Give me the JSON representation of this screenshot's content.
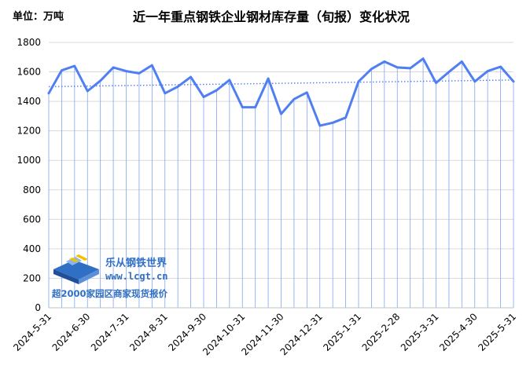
{
  "unit_label": "单位：万吨",
  "watermark": {
    "name": "乐从钢铁世界",
    "url": "www.lcgt.cn",
    "slogan": "超2000家园区商家现货报价"
  },
  "colors": {
    "series": "#4f7ff2",
    "trend": "#4f7ff2",
    "drop_lines": "#7fa4f7",
    "grid": "#d9d9d9",
    "logo_blue": "#2f6fc4",
    "logo_yellow": "#f2c200"
  },
  "chart_data": {
    "type": "line",
    "title": "近一年重点钢铁企业钢材库存量（旬报）变化状况",
    "xlabel": "",
    "ylabel": "",
    "ylim": [
      0,
      1800
    ],
    "yticks": [
      0,
      200,
      400,
      600,
      800,
      1000,
      1200,
      1400,
      1600,
      1800
    ],
    "grid": "horizontal",
    "x_tick_labels": [
      "2024-5-31",
      "2024-6-30",
      "2024-7-31",
      "2024-8-31",
      "2024-9-30",
      "2024-10-31",
      "2024-11-30",
      "2024-12-31",
      "2025-1-31",
      "2025-2-28",
      "2025-3-31",
      "2025-4-30",
      "2025-5-31"
    ],
    "series": [
      {
        "values": [
          1455,
          1610,
          1640,
          1470,
          1540,
          1630,
          1605,
          1590,
          1645,
          1455,
          1500,
          1565,
          1430,
          1475,
          1545,
          1360,
          1360,
          1555,
          1315,
          1415,
          1460,
          1235,
          1255,
          1290,
          1535,
          1620,
          1670,
          1630,
          1625,
          1690,
          1525,
          1600,
          1670,
          1535,
          1605,
          1635,
          1535
        ]
      }
    ],
    "trendline": {
      "style": "dotted linear",
      "start": 1500,
      "end": 1545
    }
  }
}
